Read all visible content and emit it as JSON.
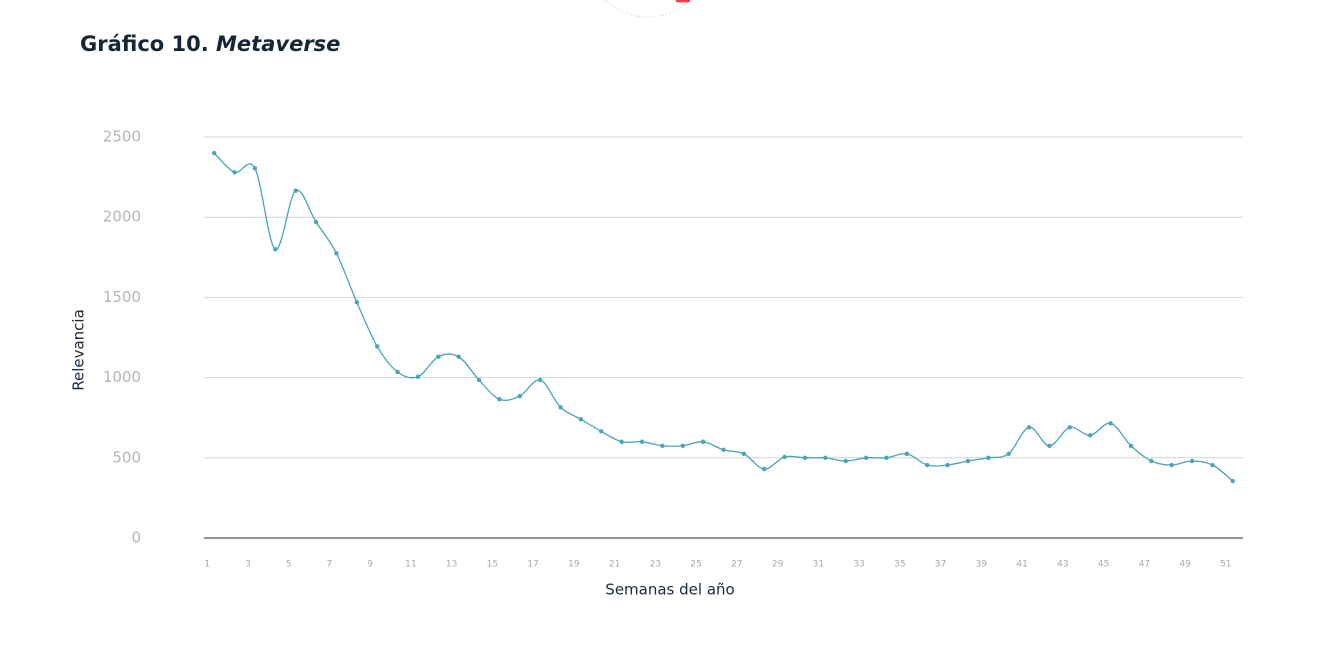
{
  "chart_data": {
    "type": "line",
    "title": "Gráfico 10.",
    "subtitle": "Metaverse",
    "x_label": "Semanas del año",
    "y_label": "Relevancia",
    "categories": [
      "1",
      null,
      "3",
      null,
      "5",
      null,
      "7",
      null,
      "9",
      null,
      "11",
      null,
      "13",
      null,
      "15",
      null,
      "17",
      null,
      "19",
      null,
      "21",
      null,
      "23",
      null,
      "25",
      null,
      "27",
      null,
      "29",
      null,
      "31",
      null,
      "33",
      null,
      "35",
      null,
      "37",
      null,
      "39",
      null,
      "41",
      null,
      "43",
      null,
      "45",
      null,
      "47",
      null,
      "49",
      null,
      "51"
    ],
    "series": [
      {
        "name": "Metaverse",
        "color": "#4aa3b8",
        "values": [
          2400,
          2280,
          2305,
          1800,
          2165,
          1970,
          1775,
          1470,
          1195,
          1035,
          1005,
          1130,
          1130,
          985,
          865,
          885,
          985,
          815,
          740,
          665,
          600,
          600,
          575,
          575,
          600,
          550,
          525,
          430,
          505,
          500,
          500,
          480,
          500,
          500,
          525,
          455,
          455,
          480,
          500,
          525,
          690,
          575,
          690,
          640,
          715,
          575,
          480,
          455,
          480,
          455,
          355
        ]
      }
    ],
    "ylim": [
      0,
      2500
    ],
    "yticks": [
      0,
      500,
      1000,
      1500,
      2000,
      2500
    ],
    "grid": true
  }
}
